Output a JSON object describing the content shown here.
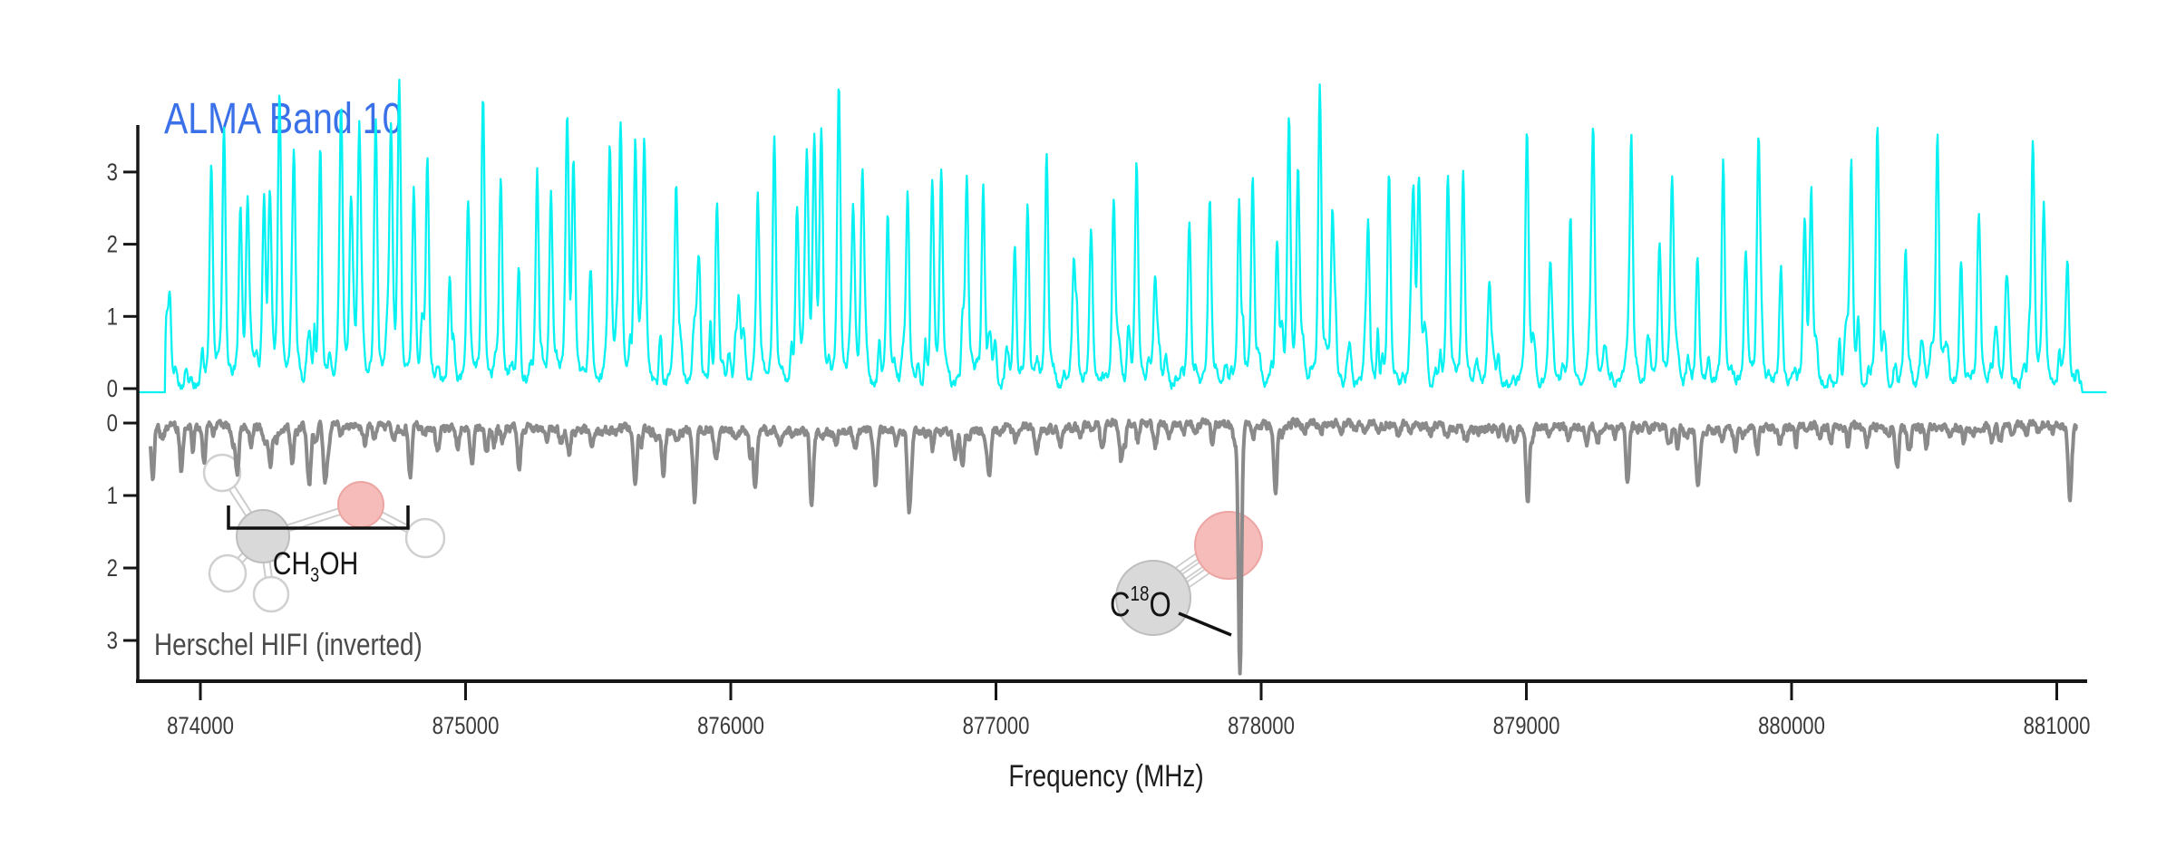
{
  "title": {
    "text": "ALMA Band 10",
    "color": "#3A70E8"
  },
  "labels": {
    "herschel_caption": "Herschel HIFI (inverted)",
    "xlabel": "Frequency (MHz)"
  },
  "molecules": {
    "methanol": {
      "formula_pre": "CH",
      "formula_sub": "3",
      "formula_post": "OH"
    },
    "c18o": {
      "pre": "C",
      "sup": "18",
      "post": "O"
    }
  },
  "colors": {
    "title-blue": "#3A70E8",
    "cyan": "#06F1F1",
    "trace-gray": "#8A8A8A",
    "oxygen-pink": "#F5BCBA",
    "carbon-gray": "#D9D9D9"
  },
  "chart_data": {
    "type": "line",
    "title": "ALMA Band 10",
    "xlabel": "Frequency (MHz)",
    "ylabel": "",
    "grid": false,
    "x_axis": {
      "range_mhz": [
        873762,
        881190
      ],
      "ticks": [
        874000,
        875000,
        876000,
        877000,
        878000,
        879000,
        880000,
        881000
      ],
      "tick_labels": [
        "874000",
        "875000",
        "876000",
        "877000",
        "878000",
        "879000",
        "880000",
        "881000"
      ]
    },
    "y_axis_upper": {
      "series": "ALMA Band 10",
      "tick_values": [
        3,
        2,
        1,
        0
      ],
      "tick_labels": [
        "3",
        "2",
        "1",
        "0"
      ],
      "range": [
        -0.2,
        3.6
      ]
    },
    "y_axis_lower": {
      "series": "Herschel HIFI (inverted)",
      "inverted": true,
      "tick_values": [
        0,
        -1,
        -2,
        -3
      ],
      "tick_labels": [
        "0",
        "1",
        "2",
        "3"
      ],
      "range": [
        0.2,
        -3.6
      ]
    },
    "series": [
      {
        "name": "ALMA Band 10",
        "color": "#06F1F1",
        "style": "emission",
        "flat_until_mhz": 873868,
        "flat_after_mhz": 881095,
        "flat_level": -0.05,
        "noise": {
          "seed": 101,
          "amp": 0.2,
          "base": 0.04
        },
        "minor_peaks": {
          "seed": 202,
          "spacing": [
            14,
            60
          ],
          "amp": [
            0.12,
            0.8
          ],
          "sigma": [
            3.5,
            8
          ]
        },
        "peaks": [
          [
            873884,
            1.1
          ],
          [
            874041,
            2.6
          ],
          [
            874089,
            2.85
          ],
          [
            874151,
            2.0
          ],
          [
            874178,
            2.1
          ],
          [
            874240,
            2.1
          ],
          [
            874262,
            2.15
          ],
          [
            874298,
            2.9
          ],
          [
            874353,
            2.6
          ],
          [
            874452,
            2.9
          ],
          [
            874531,
            2.8
          ],
          [
            874568,
            2.1
          ],
          [
            874599,
            3.0
          ],
          [
            874661,
            3.0
          ],
          [
            874719,
            3.05
          ],
          [
            874750,
            3.0
          ],
          [
            874805,
            2.4
          ],
          [
            874856,
            2.75
          ],
          [
            874940,
            1.3
          ],
          [
            875010,
            2.2
          ],
          [
            875065,
            3.15
          ],
          [
            875133,
            2.45
          ],
          [
            875200,
            1.2
          ],
          [
            875270,
            2.6
          ],
          [
            875322,
            2.3
          ],
          [
            875383,
            3.1
          ],
          [
            875407,
            2.6
          ],
          [
            875470,
            1.3
          ],
          [
            875544,
            2.8
          ],
          [
            875585,
            2.9
          ],
          [
            875640,
            2.9
          ],
          [
            875674,
            2.6
          ],
          [
            875794,
            2.4
          ],
          [
            875880,
            1.5
          ],
          [
            875948,
            2.2
          ],
          [
            876030,
            1.1
          ],
          [
            876102,
            2.2
          ],
          [
            876164,
            2.6
          ],
          [
            876250,
            2.1
          ],
          [
            876287,
            2.6
          ],
          [
            876315,
            2.8
          ],
          [
            876342,
            2.55
          ],
          [
            876407,
            3.4
          ],
          [
            876462,
            1.9
          ],
          [
            876496,
            2.2
          ],
          [
            876592,
            2.1
          ],
          [
            876667,
            2.3
          ],
          [
            876760,
            2.45
          ],
          [
            876794,
            2.2
          ],
          [
            876890,
            2.5
          ],
          [
            876952,
            2.4
          ],
          [
            877071,
            1.45
          ],
          [
            877119,
            1.9
          ],
          [
            877191,
            2.7
          ],
          [
            877294,
            1.55
          ],
          [
            877359,
            1.85
          ],
          [
            877444,
            2.1
          ],
          [
            877530,
            2.6
          ],
          [
            877600,
            1.3
          ],
          [
            877729,
            2.0
          ],
          [
            877807,
            1.8
          ],
          [
            877917,
            1.9
          ],
          [
            877968,
            2.55
          ],
          [
            878060,
            1.75
          ],
          [
            878105,
            2.9
          ],
          [
            878139,
            2.5
          ],
          [
            878221,
            3.45
          ],
          [
            878269,
            2.1
          ],
          [
            878403,
            1.95
          ],
          [
            878482,
            2.45
          ],
          [
            878574,
            2.2
          ],
          [
            878595,
            2.4
          ],
          [
            878704,
            2.55
          ],
          [
            878762,
            2.5
          ],
          [
            878860,
            1.2
          ],
          [
            879002,
            3.0
          ],
          [
            879090,
            1.3
          ],
          [
            879166,
            1.85
          ],
          [
            879252,
            2.9
          ],
          [
            879396,
            2.75
          ],
          [
            879502,
            1.7
          ],
          [
            879550,
            2.35
          ],
          [
            879645,
            1.4
          ],
          [
            879742,
            2.3
          ],
          [
            879827,
            1.6
          ],
          [
            879875,
            2.9
          ],
          [
            879960,
            1.2
          ],
          [
            880050,
            1.6
          ],
          [
            880074,
            2.3
          ],
          [
            880225,
            2.7
          ],
          [
            880324,
            3.1
          ],
          [
            880430,
            1.5
          ],
          [
            880550,
            3.05
          ],
          [
            880639,
            1.4
          ],
          [
            880707,
            2.0
          ],
          [
            880810,
            1.3
          ],
          [
            880910,
            2.95
          ],
          [
            880951,
            1.9
          ],
          [
            881040,
            1.5
          ]
        ]
      },
      {
        "name": "Herschel HIFI (inverted)",
        "color": "#8A8A8A",
        "style": "absorption",
        "x_start_mhz": 873812,
        "x_end_mhz": 881078,
        "noise": {
          "seed": 303,
          "amp": 0.17,
          "base": -0.06
        },
        "minor_dips": {
          "seed": 404,
          "spacing": [
            24,
            90
          ],
          "depth": [
            0.08,
            0.4
          ],
          "sigma": [
            4,
            8
          ]
        },
        "dips": [
          [
            873818,
            0.45
          ],
          [
            873928,
            0.5
          ],
          [
            874014,
            0.5
          ],
          [
            874140,
            0.65
          ],
          [
            874264,
            0.55
          ],
          [
            874346,
            0.5
          ],
          [
            874411,
            0.8
          ],
          [
            874469,
            0.65
          ],
          [
            874791,
            0.7
          ],
          [
            875024,
            0.5
          ],
          [
            875202,
            0.6
          ],
          [
            875640,
            0.7
          ],
          [
            875746,
            0.6
          ],
          [
            875863,
            0.85
          ],
          [
            876092,
            0.75
          ],
          [
            876304,
            0.85
          ],
          [
            876547,
            0.75
          ],
          [
            876671,
            0.9
          ],
          [
            876873,
            0.5
          ],
          [
            876975,
            0.6
          ],
          [
            877472,
            0.5
          ],
          [
            877920,
            3.45
          ],
          [
            878054,
            0.8
          ],
          [
            879005,
            1.05
          ],
          [
            879382,
            0.8
          ],
          [
            879645,
            0.6
          ],
          [
            880398,
            0.55
          ],
          [
            881049,
            0.95
          ]
        ],
        "labeled_line": {
          "molecule": "C18O",
          "freq_mhz": 877920,
          "depth": 3.45
        }
      }
    ],
    "annotations": {
      "ch3oh_bracket": {
        "range_mhz": [
          874106,
          874783
        ],
        "label": "CH3OH"
      },
      "c18o_pointer": {
        "freq_mhz": 877920,
        "label": "C18O"
      }
    }
  }
}
